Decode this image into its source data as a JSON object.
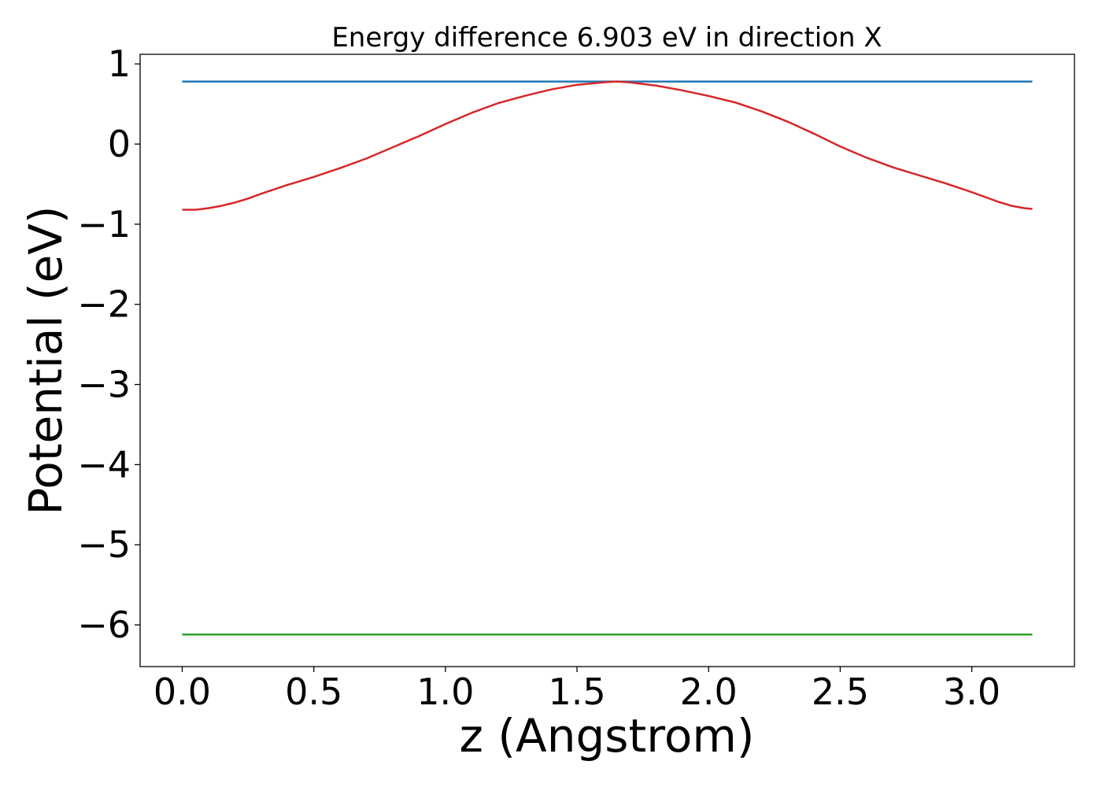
{
  "chart_data": {
    "type": "line",
    "title": "Energy difference 6.903 eV in direction X",
    "xlabel": "z (Angstrom)",
    "ylabel": "Potential (eV)",
    "xlim": [
      -0.16,
      3.39
    ],
    "ylim": [
      -6.52,
      1.12
    ],
    "grid": false,
    "x_ticks": [
      0.0,
      0.5,
      1.0,
      1.5,
      2.0,
      2.5,
      3.0
    ],
    "x_tick_labels": [
      "0.0",
      "0.5",
      "1.0",
      "1.5",
      "2.0",
      "2.5",
      "3.0"
    ],
    "y_ticks": [
      1,
      0,
      -1,
      -2,
      -3,
      -4,
      -5,
      -6
    ],
    "y_tick_labels": [
      "1",
      "0",
      "−1",
      "−2",
      "−3",
      "−4",
      "−5",
      "−6"
    ],
    "series": [
      {
        "color": "#1f77b4",
        "x": [
          0.0,
          3.23
        ],
        "y": [
          0.78,
          0.78
        ]
      },
      {
        "color": "#d62728",
        "x": [
          0.0,
          0.05,
          0.1,
          0.15,
          0.2,
          0.25,
          0.3,
          0.4,
          0.5,
          0.6,
          0.7,
          0.8,
          0.9,
          1.0,
          1.1,
          1.2,
          1.3,
          1.4,
          1.5,
          1.6,
          1.65,
          1.7,
          1.8,
          1.9,
          2.0,
          2.1,
          2.2,
          2.3,
          2.4,
          2.5,
          2.6,
          2.7,
          2.8,
          2.9,
          3.0,
          3.05,
          3.1,
          3.15,
          3.2,
          3.23
        ],
        "y": [
          -0.82,
          -0.82,
          -0.8,
          -0.77,
          -0.73,
          -0.68,
          -0.62,
          -0.51,
          -0.41,
          -0.3,
          -0.18,
          -0.04,
          0.1,
          0.25,
          0.39,
          0.51,
          0.6,
          0.68,
          0.74,
          0.77,
          0.78,
          0.77,
          0.73,
          0.67,
          0.6,
          0.52,
          0.41,
          0.28,
          0.13,
          -0.03,
          -0.17,
          -0.29,
          -0.39,
          -0.49,
          -0.6,
          -0.66,
          -0.72,
          -0.77,
          -0.8,
          -0.81
        ]
      },
      {
        "color": "#2ca02c",
        "x": [
          0.0,
          3.23
        ],
        "y": [
          -6.12,
          -6.12
        ]
      }
    ]
  }
}
